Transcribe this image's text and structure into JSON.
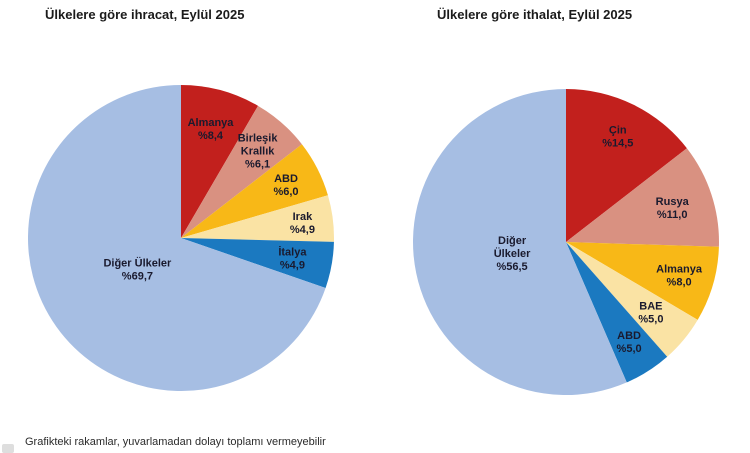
{
  "page": {
    "footnote": "Grafikteki rakamlar, yuvarlamadan dolayı toplamı vermeyebilir"
  },
  "colors": {
    "slice_label_text": "#1a1a2e",
    "title_text": "#1b1b1b",
    "dark_red": "#c2201d",
    "salmon": "#d99181",
    "gold": "#f8b817",
    "cream": "#fae3a4",
    "blue": "#1b79c0",
    "light_blue": "#a6bee3"
  },
  "chart_data": [
    {
      "type": "pie",
      "title": "Ülkelere göre ihracat, Eylül 2025",
      "unit": "%",
      "start_angle_deg": 0,
      "direction": "clockwise",
      "legend": "none",
      "slices": [
        {
          "name": "Almanya",
          "value": 8.4,
          "value_label": "%8,4",
          "label_lines": [
            "Almanya",
            "%8,4"
          ],
          "color": "#c2201d",
          "label_r": 0.74
        },
        {
          "name": "Birleşik Krallık",
          "value": 6.1,
          "value_label": "%6,1",
          "label_lines": [
            "Birleşik",
            "Krallık",
            "%6,1"
          ],
          "color": "#d99181",
          "label_r": 0.76
        },
        {
          "name": "ABD",
          "value": 6.0,
          "value_label": "%6,0",
          "label_lines": [
            "ABD",
            "%6,0"
          ],
          "color": "#f8b817",
          "label_r": 0.77
        },
        {
          "name": "Irak",
          "value": 4.9,
          "value_label": "%4,9",
          "label_lines": [
            "Irak",
            "%4,9"
          ],
          "color": "#fae3a4",
          "label_r": 0.8
        },
        {
          "name": "İtalya",
          "value": 4.9,
          "value_label": "%4,9",
          "label_lines": [
            "İtalya",
            "%4,9"
          ],
          "color": "#1b79c0",
          "label_r": 0.74
        },
        {
          "name": "Diğer Ülkeler",
          "value": 69.7,
          "value_label": "%69,7",
          "label_lines": [
            "Diğer Ülkeler",
            "%69,7"
          ],
          "color": "#a6bee3",
          "label_r": 0.35
        }
      ]
    },
    {
      "type": "pie",
      "title": "Ülkelere göre ithalat, Eylül 2025",
      "unit": "%",
      "start_angle_deg": 0,
      "direction": "clockwise",
      "legend": "none",
      "slices": [
        {
          "name": "Çin",
          "value": 14.5,
          "value_label": "%14,5",
          "label_lines": [
            "Çin",
            "%14,5"
          ],
          "color": "#c2201d",
          "label_r": 0.77
        },
        {
          "name": "Rusya",
          "value": 11.0,
          "value_label": "%11,0",
          "label_lines": [
            "Rusya",
            "%11,0"
          ],
          "color": "#d99181",
          "label_r": 0.73
        },
        {
          "name": "Almanya",
          "value": 8.0,
          "value_label": "%8,0",
          "label_lines": [
            "Almanya",
            "%8,0"
          ],
          "color": "#f8b817",
          "label_r": 0.77
        },
        {
          "name": "BAE",
          "value": 5.0,
          "value_label": "%5,0",
          "label_lines": [
            "BAE",
            "%5,0"
          ],
          "color": "#fae3a4",
          "label_r": 0.72
        },
        {
          "name": "ABD",
          "value": 5.0,
          "value_label": "%5,0",
          "label_lines": [
            "ABD",
            "%5,0"
          ],
          "color": "#1b79c0",
          "label_r": 0.77
        },
        {
          "name": "Diğer Ülkeler",
          "value": 56.5,
          "value_label": "%56,5",
          "label_lines": [
            "Diğer",
            "Ülkeler",
            "%56,5"
          ],
          "color": "#a6bee3",
          "label_r": 0.36
        }
      ]
    }
  ]
}
